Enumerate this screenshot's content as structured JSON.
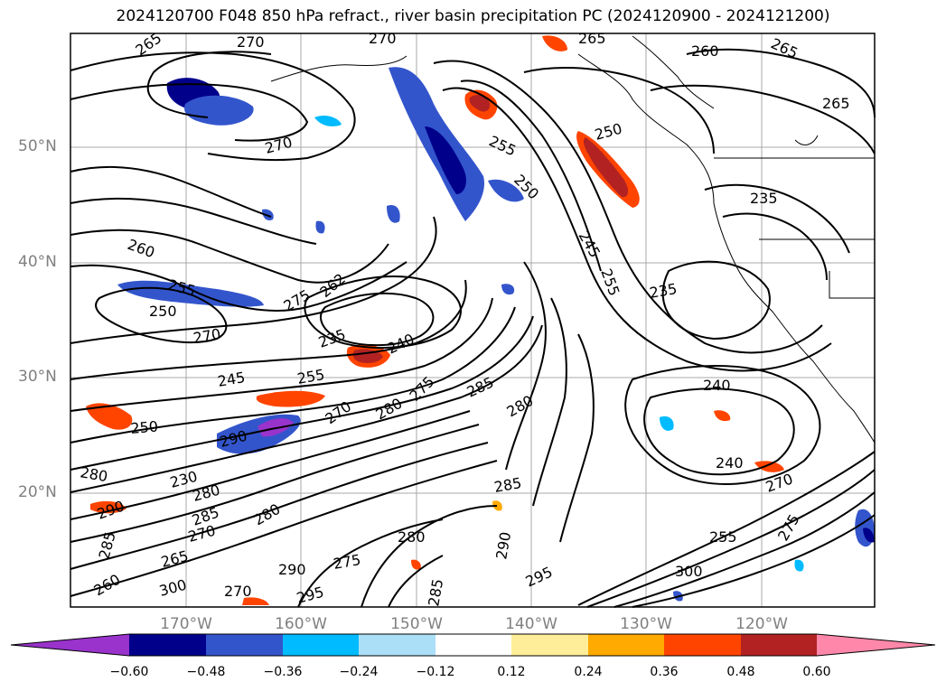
{
  "title": "2024120700 F048 850 hPa refract., river basin precipitation PC (2024120900 - 2024121200)",
  "lat_labels": [
    "50°N",
    "40°N",
    "30°N",
    "20°N"
  ],
  "lon_labels": [
    "170°W",
    "160°W",
    "150°W",
    "140°W",
    "130°W",
    "120°W"
  ],
  "colorbar": {
    "colors": [
      "#9933cc",
      "#00008b",
      "#3355cc",
      "#00bbff",
      "#aadff7",
      "#ffffff",
      "#ffee99",
      "#ffaa00",
      "#ff4400",
      "#b22222",
      "#ff88aa"
    ],
    "tick_labels": [
      "−0.60",
      "−0.48",
      "−0.36",
      "−0.24",
      "−0.12",
      "0.12",
      "0.24",
      "0.36",
      "0.48",
      "0.60"
    ]
  },
  "contour_labels": [
    "265",
    "270",
    "270",
    "265",
    "260",
    "265",
    "270",
    "255",
    "250",
    "250",
    "235",
    "265",
    "260",
    "255",
    "250",
    "270",
    "275",
    "262",
    "235",
    "240",
    "245",
    "255",
    "285",
    "280",
    "235",
    "240",
    "245",
    "255",
    "250",
    "290",
    "280",
    "230",
    "280",
    "270",
    "280",
    "275",
    "285",
    "240",
    "270",
    "275",
    "280",
    "285",
    "290",
    "300",
    "255",
    "270",
    "290",
    "295",
    "290",
    "275",
    "280",
    "295",
    "300",
    "260",
    "265",
    "270",
    "285",
    "285"
  ]
}
